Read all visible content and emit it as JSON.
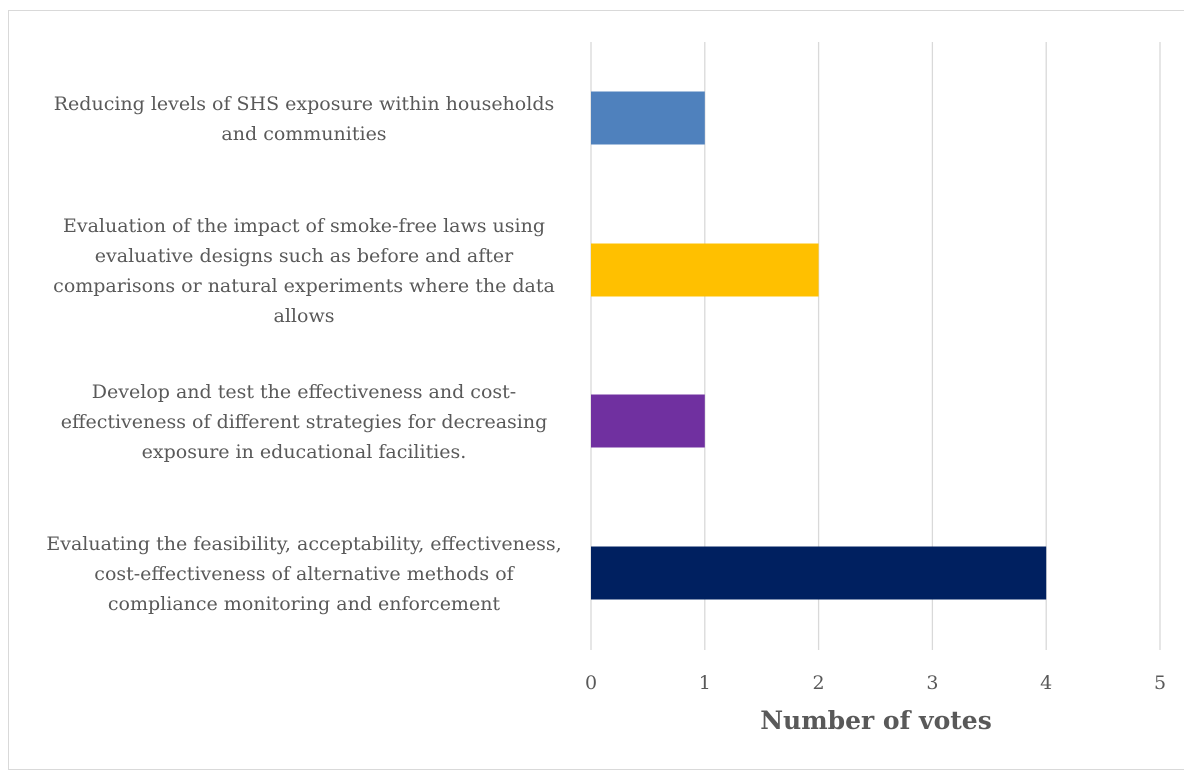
{
  "chart_data": {
    "type": "bar",
    "orientation": "horizontal",
    "categories": [
      [
        "Reducing levels of SHS exposure within households",
        "and communities"
      ],
      [
        "Evaluation of the impact of smoke-free laws using",
        "evaluative designs such as before and after",
        "comparisons or natural experiments where the data",
        "allows"
      ],
      [
        "Develop and test the effectiveness and cost-",
        "effectiveness of different strategies for decreasing",
        "exposure in educational facilities."
      ],
      [
        "Evaluating the feasibility, acceptability, effectiveness,",
        "cost-effectiveness of alternative methods of",
        "compliance monitoring and enforcement"
      ]
    ],
    "values": [
      1,
      2,
      1,
      4
    ],
    "bar_colors": [
      "#4f81bd",
      "#ffc000",
      "#7030a0",
      "#002060"
    ],
    "xlabel": "Number of votes",
    "ylabel": "",
    "title": "",
    "xlim": [
      0,
      5
    ],
    "x_ticks": [
      "0",
      "1",
      "2",
      "3",
      "4",
      "5"
    ],
    "grid": "vertical",
    "legend": "none"
  },
  "colors": {
    "grid": "#d9d9d9",
    "text": "#595959",
    "frame": "#d9d9d9"
  }
}
